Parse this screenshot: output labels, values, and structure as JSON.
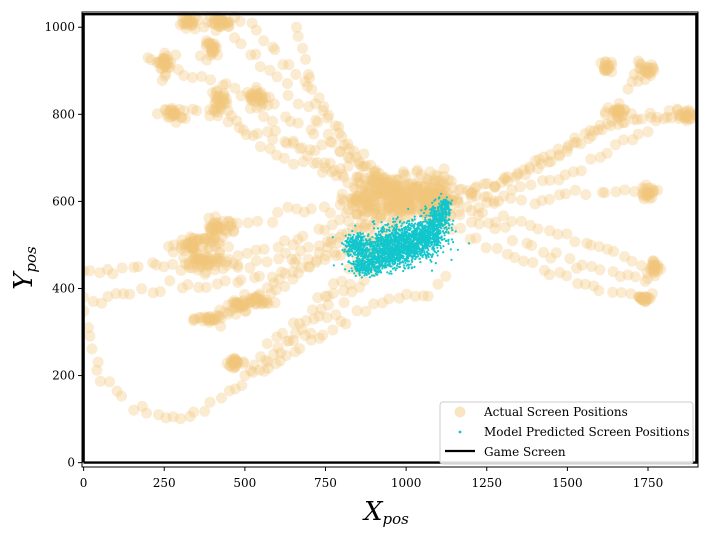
{
  "chart_data": {
    "type": "scatter",
    "xlabel": {
      "main": "X",
      "sub": "pos"
    },
    "ylabel": {
      "main": "Y",
      "sub": "pos"
    },
    "xlim": [
      -5,
      1905
    ],
    "ylim": [
      -10,
      1035
    ],
    "xticks": [
      0,
      250,
      500,
      750,
      1000,
      1250,
      1500,
      1750
    ],
    "yticks": [
      0,
      200,
      400,
      600,
      800,
      1000
    ],
    "grid": false,
    "legend": "lower-right",
    "series": [
      {
        "name": "Actual Screen Positions",
        "kind": "scatter-large",
        "color": "#f2c57a",
        "trajectories": [
          [
            [
              1000,
              600
            ],
            [
              850,
              700
            ],
            [
              700,
              850
            ],
            [
              600,
              950
            ],
            [
              520,
              1010
            ],
            [
              420,
              1010
            ]
          ],
          [
            [
              1000,
              600
            ],
            [
              800,
              720
            ],
            [
              600,
              880
            ],
            [
              450,
              1000
            ],
            [
              320,
              1010
            ]
          ],
          [
            [
              1000,
              610
            ],
            [
              820,
              700
            ],
            [
              620,
              800
            ],
            [
              420,
              870
            ],
            [
              260,
              910
            ],
            [
              200,
              930
            ]
          ],
          [
            [
              1000,
              600
            ],
            [
              850,
              660
            ],
            [
              650,
              730
            ],
            [
              450,
              790
            ],
            [
              300,
              810
            ],
            [
              260,
              800
            ]
          ],
          [
            [
              1000,
              600
            ],
            [
              820,
              650
            ],
            [
              620,
              700
            ],
            [
              500,
              760
            ],
            [
              420,
              820
            ],
            [
              400,
              850
            ]
          ],
          [
            [
              1000,
              600
            ],
            [
              850,
              640
            ],
            [
              700,
              700
            ],
            [
              600,
              760
            ],
            [
              550,
              820
            ],
            [
              520,
              840
            ]
          ],
          [
            [
              1000,
              610
            ],
            [
              860,
              700
            ],
            [
              760,
              790
            ],
            [
              700,
              880
            ],
            [
              660,
              1000
            ]
          ],
          [
            [
              1000,
              600
            ],
            [
              800,
              590
            ],
            [
              600,
              570
            ],
            [
              450,
              540
            ],
            [
              330,
              500
            ],
            [
              280,
              500
            ]
          ],
          [
            [
              1000,
              600
            ],
            [
              820,
              560
            ],
            [
              640,
              510
            ],
            [
              480,
              470
            ],
            [
              360,
              455
            ]
          ],
          [
            [
              1000,
              590
            ],
            [
              850,
              540
            ],
            [
              700,
              480
            ],
            [
              560,
              400
            ],
            [
              450,
              350
            ],
            [
              400,
              330
            ]
          ],
          [
            [
              1000,
              590
            ],
            [
              850,
              520
            ],
            [
              720,
              460
            ],
            [
              600,
              400
            ],
            [
              520,
              370
            ]
          ],
          [
            [
              1000,
              580
            ],
            [
              900,
              500
            ],
            [
              800,
              430
            ],
            [
              700,
              350
            ],
            [
              600,
              280
            ],
            [
              500,
              220
            ],
            [
              460,
              230
            ]
          ],
          [
            [
              960,
              500
            ],
            [
              880,
              420
            ],
            [
              780,
              350
            ],
            [
              650,
              280
            ],
            [
              560,
              230
            ],
            [
              500,
              200
            ]
          ],
          [
            [
              1130,
              420
            ],
            [
              1050,
              380
            ],
            [
              950,
              370
            ],
            [
              850,
              340
            ],
            [
              750,
              300
            ],
            [
              650,
              250
            ],
            [
              560,
              210
            ]
          ],
          [
            [
              1000,
              580
            ],
            [
              850,
              500
            ],
            [
              700,
              450
            ],
            [
              500,
              420
            ],
            [
              300,
              400
            ],
            [
              150,
              390
            ],
            [
              80,
              380
            ],
            [
              30,
              370
            ]
          ],
          [
            [
              1000,
              560
            ],
            [
              900,
              480
            ],
            [
              780,
              380
            ],
            [
              650,
              290
            ],
            [
              520,
              200
            ],
            [
              400,
              130
            ],
            [
              300,
              100
            ],
            [
              200,
              110
            ],
            [
              120,
              140
            ],
            [
              50,
              210
            ],
            [
              20,
              290
            ],
            [
              0,
              380
            ]
          ],
          [
            [
              900,
              560
            ],
            [
              750,
              500
            ],
            [
              600,
              460
            ],
            [
              450,
              450
            ],
            [
              300,
              445
            ],
            [
              200,
              455
            ],
            [
              100,
              440
            ],
            [
              0,
              440
            ]
          ],
          [
            [
              1060,
              580
            ],
            [
              1250,
              620
            ],
            [
              1450,
              700
            ],
            [
              1620,
              800
            ],
            [
              1740,
              900
            ]
          ],
          [
            [
              1060,
              600
            ],
            [
              1300,
              650
            ],
            [
              1500,
              720
            ],
            [
              1650,
              780
            ],
            [
              1780,
              800
            ],
            [
              1900,
              800
            ]
          ],
          [
            [
              1060,
              590
            ],
            [
              1300,
              600
            ],
            [
              1500,
              610
            ],
            [
              1650,
              620
            ],
            [
              1750,
              620
            ]
          ],
          [
            [
              1060,
              580
            ],
            [
              1280,
              540
            ],
            [
              1450,
              480
            ],
            [
              1600,
              440
            ],
            [
              1740,
              420
            ],
            [
              1770,
              440
            ]
          ],
          [
            [
              1060,
              570
            ],
            [
              1250,
              500
            ],
            [
              1420,
              440
            ],
            [
              1580,
              400
            ],
            [
              1700,
              380
            ],
            [
              1740,
              380
            ]
          ],
          [
            [
              1060,
              590
            ],
            [
              1300,
              560
            ],
            [
              1500,
              520
            ],
            [
              1650,
              480
            ],
            [
              1780,
              440
            ]
          ],
          [
            [
              1060,
              600
            ],
            [
              1280,
              640
            ],
            [
              1450,
              700
            ],
            [
              1580,
              760
            ],
            [
              1700,
              800
            ],
            [
              1800,
              790
            ]
          ],
          [
            [
              1060,
              600
            ],
            [
              1300,
              620
            ],
            [
              1500,
              660
            ],
            [
              1650,
              720
            ],
            [
              1750,
              760
            ]
          ]
        ],
        "clusters": [
          [
            1000,
            600,
            120,
            40
          ],
          [
            1080,
            620,
            60,
            60
          ],
          [
            950,
            630,
            110,
            40
          ],
          [
            870,
            600,
            80,
            30
          ],
          [
            250,
            920,
            30,
            30
          ],
          [
            420,
            1010,
            40,
            15
          ],
          [
            330,
            1010,
            30,
            20
          ],
          [
            400,
            950,
            30,
            20
          ],
          [
            280,
            800,
            30,
            20
          ],
          [
            420,
            830,
            30,
            25
          ],
          [
            540,
            840,
            40,
            20
          ],
          [
            350,
            500,
            80,
            30
          ],
          [
            380,
            460,
            80,
            20
          ],
          [
            420,
            540,
            60,
            20
          ],
          [
            400,
            330,
            50,
            15
          ],
          [
            480,
            360,
            50,
            20
          ],
          [
            540,
            370,
            40,
            15
          ],
          [
            470,
            230,
            25,
            20
          ],
          [
            1740,
            900,
            30,
            20
          ],
          [
            1750,
            620,
            30,
            15
          ],
          [
            1870,
            800,
            40,
            15
          ],
          [
            1620,
            910,
            20,
            15
          ],
          [
            1740,
            380,
            25,
            15
          ],
          [
            1770,
            450,
            20,
            20
          ],
          [
            1650,
            800,
            30,
            20
          ]
        ]
      },
      {
        "name": "Model Predicted Screen Positions",
        "kind": "scatter-small",
        "color": "#12c6cc",
        "clusters": [
          [
            940,
            480,
            110,
            40
          ],
          [
            990,
            510,
            100,
            45
          ],
          [
            1060,
            520,
            70,
            40
          ],
          [
            1100,
            560,
            40,
            40
          ],
          [
            880,
            450,
            60,
            20
          ],
          [
            850,
            500,
            45,
            30
          ],
          [
            1120,
            590,
            20,
            20
          ]
        ]
      },
      {
        "name": "Game Screen",
        "kind": "line",
        "color": "#000000",
        "points": [
          [
            0,
            0
          ],
          [
            1900,
            0
          ],
          [
            1900,
            1030
          ],
          [
            0,
            1030
          ],
          [
            0,
            0
          ]
        ]
      }
    ]
  }
}
